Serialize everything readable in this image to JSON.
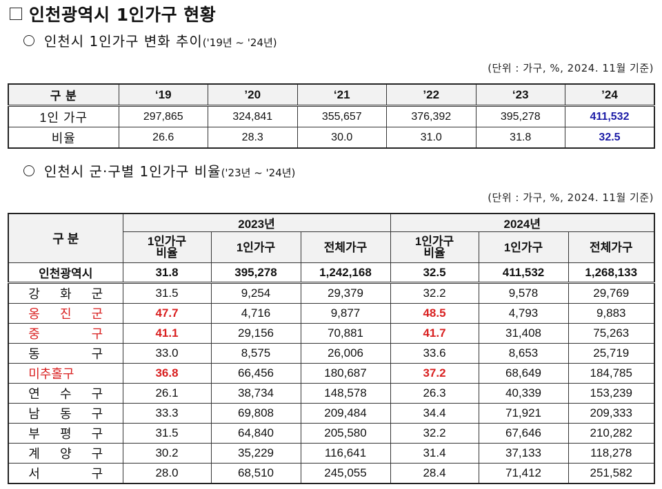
{
  "title": "인천광역시 1인가구 현황",
  "section1": {
    "heading": "인천시 1인가구 변화 추이",
    "heading_period": "('19년 ~ '24년)",
    "unit_note": "(단위 : 가구, %, 2024. 11월 기준)",
    "table": {
      "header_label": "구 분",
      "years": [
        "‘19",
        "’20",
        "‘21",
        "’22",
        "‘23",
        "’24"
      ],
      "rows": [
        {
          "label": "1인 가구",
          "values": [
            "297,865",
            "324,841",
            "355,657",
            "376,392",
            "395,278",
            "411,532"
          ]
        },
        {
          "label": "비율",
          "values": [
            "26.6",
            "28.3",
            "30.0",
            "31.0",
            "31.8",
            "32.5"
          ]
        }
      ]
    }
  },
  "section2": {
    "heading": "인천시 군·구별 1인가구 비율",
    "heading_period": "('23년 ~ '24년)",
    "unit_note": "(단위 : 가구, %, 2024. 11월 기준)",
    "table": {
      "header_label": "구 분",
      "year_groups": [
        "2023년",
        "2024년"
      ],
      "subheaders": [
        "1인가구\n비율",
        "1인가구",
        "전체가구",
        "1인가구\n비율",
        "1인가구",
        "전체가구"
      ],
      "subheader_ratio_line1": "1인가구",
      "subheader_ratio_line2": "비율",
      "subheader_single": "1인가구",
      "subheader_total": "전체가구",
      "total_row": {
        "label": "인천광역시",
        "values": [
          "31.8",
          "395,278",
          "1,242,168",
          "32.5",
          "411,532",
          "1,268,133"
        ]
      },
      "rows": [
        {
          "label": "강화군",
          "values": [
            "31.5",
            "9,254",
            "29,379",
            "32.2",
            "9,578",
            "29,769"
          ],
          "highlight": false
        },
        {
          "label": "옹진군",
          "values": [
            "47.7",
            "4,716",
            "9,877",
            "48.5",
            "4,793",
            "9,883"
          ],
          "highlight": true
        },
        {
          "label": "중구",
          "values": [
            "41.1",
            "29,156",
            "70,881",
            "41.7",
            "31,408",
            "75,263"
          ],
          "highlight": true
        },
        {
          "label": "동구",
          "values": [
            "33.0",
            "8,575",
            "26,006",
            "33.6",
            "8,653",
            "25,719"
          ],
          "highlight": false
        },
        {
          "label": "미추홀구",
          "values": [
            "36.8",
            "66,456",
            "180,687",
            "37.2",
            "68,649",
            "184,785"
          ],
          "highlight": true
        },
        {
          "label": "연수구",
          "values": [
            "26.1",
            "38,734",
            "148,578",
            "26.3",
            "40,339",
            "153,239"
          ],
          "highlight": false
        },
        {
          "label": "남동구",
          "values": [
            "33.3",
            "69,808",
            "209,484",
            "34.4",
            "71,921",
            "209,333"
          ],
          "highlight": false
        },
        {
          "label": "부평구",
          "values": [
            "31.5",
            "64,840",
            "205,580",
            "32.2",
            "67,646",
            "210,282"
          ],
          "highlight": false
        },
        {
          "label": "계양구",
          "values": [
            "30.2",
            "35,229",
            "116,641",
            "31.4",
            "37,133",
            "118,278"
          ],
          "highlight": false
        },
        {
          "label": "서구",
          "values": [
            "28.0",
            "68,510",
            "245,055",
            "28.4",
            "71,412",
            "251,582"
          ],
          "highlight": false
        }
      ]
    }
  },
  "colors": {
    "highlight_red": "#d92020",
    "latest_blue": "#1a1aa6",
    "header_bg": "#f2f2f2"
  }
}
